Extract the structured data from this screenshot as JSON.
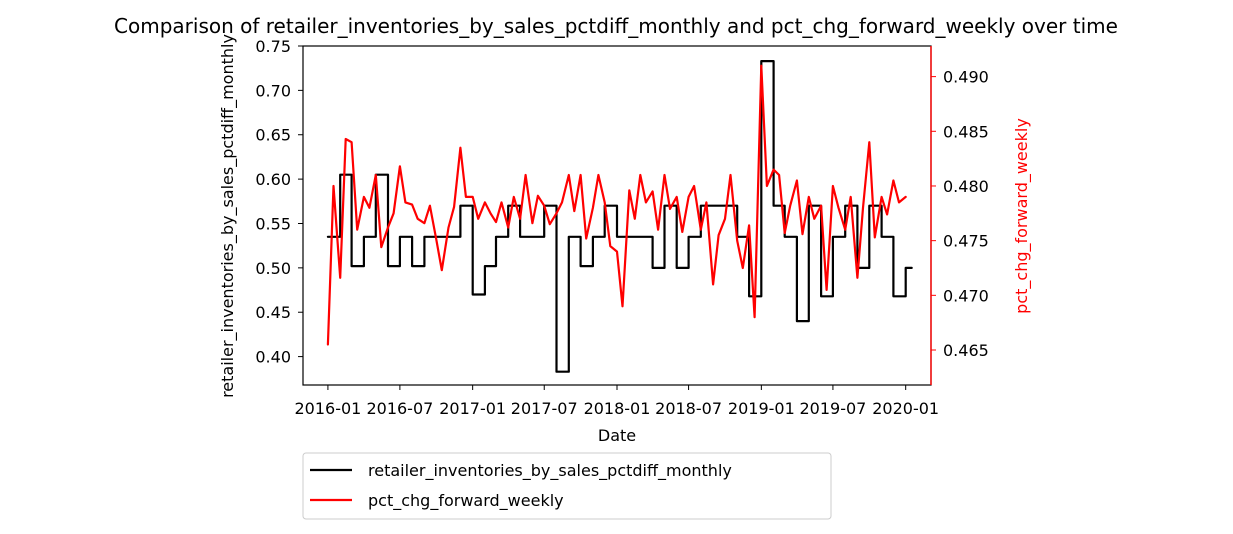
{
  "chart_data": {
    "type": "line",
    "title": "Comparison of retailer_inventories_by_sales_pctdiff_monthly and pct_chg_forward_weekly over time",
    "xlabel": "Date",
    "ylabel_left": "retailer_inventories_by_sales_pctdiff_monthly",
    "ylabel_right": "pct_chg_forward_weekly",
    "x_range": [
      "2015-10-30",
      "2020-03-05"
    ],
    "ylim_left": [
      0.368,
      0.75
    ],
    "ylim_right": [
      0.4618,
      0.4928
    ],
    "x_ticks": [
      "2016-01-01",
      "2016-07-01",
      "2017-01-01",
      "2017-07-01",
      "2018-01-01",
      "2018-07-01",
      "2019-01-01",
      "2019-07-01",
      "2020-01-01"
    ],
    "x_tick_labels": [
      "2016-01",
      "2016-07",
      "2017-01",
      "2017-07",
      "2018-01",
      "2018-07",
      "2019-01",
      "2019-07",
      "2020-01"
    ],
    "y_ticks_left": [
      0.4,
      0.45,
      0.5,
      0.55,
      0.6,
      0.65,
      0.7,
      0.75
    ],
    "y_tick_labels_left": [
      "0.40",
      "0.45",
      "0.50",
      "0.55",
      "0.60",
      "0.65",
      "0.70",
      "0.75"
    ],
    "y_ticks_right": [
      0.465,
      0.47,
      0.475,
      0.48,
      0.485,
      0.49
    ],
    "y_tick_labels_right": [
      "0.465",
      "0.470",
      "0.475",
      "0.480",
      "0.485",
      "0.490"
    ],
    "grid": false,
    "legend_position": "below plot, left",
    "series": [
      {
        "name": "retailer_inventories_by_sales_pctdiff_monthly",
        "color": "#000000",
        "axis": "left",
        "step": true,
        "x": [
          "2016-01-01",
          "2016-02-01",
          "2016-03-01",
          "2016-04-01",
          "2016-05-01",
          "2016-06-01",
          "2016-07-01",
          "2016-08-01",
          "2016-09-01",
          "2016-10-01",
          "2016-11-01",
          "2016-12-01",
          "2017-01-01",
          "2017-02-01",
          "2017-03-01",
          "2017-04-01",
          "2017-05-01",
          "2017-06-01",
          "2017-07-01",
          "2017-08-01",
          "2017-09-01",
          "2017-10-01",
          "2017-11-01",
          "2017-12-01",
          "2018-01-01",
          "2018-02-01",
          "2018-03-01",
          "2018-04-01",
          "2018-05-01",
          "2018-06-01",
          "2018-07-01",
          "2018-08-01",
          "2018-09-01",
          "2018-10-01",
          "2018-11-01",
          "2018-12-01",
          "2019-01-01",
          "2019-02-01",
          "2019-03-01",
          "2019-04-01",
          "2019-05-01",
          "2019-06-01",
          "2019-07-01",
          "2019-08-01",
          "2019-09-01",
          "2019-10-01",
          "2019-11-01",
          "2019-12-01",
          "2020-01-01"
        ],
        "values": [
          0.535,
          0.605,
          0.502,
          0.535,
          0.605,
          0.502,
          0.535,
          0.502,
          0.535,
          0.535,
          0.535,
          0.57,
          0.47,
          0.502,
          0.535,
          0.57,
          0.535,
          0.535,
          0.57,
          0.383,
          0.535,
          0.502,
          0.535,
          0.57,
          0.535,
          0.535,
          0.535,
          0.5,
          0.57,
          0.5,
          0.535,
          0.57,
          0.57,
          0.57,
          0.535,
          0.468,
          0.733,
          0.57,
          0.535,
          0.44,
          0.57,
          0.468,
          0.535,
          0.57,
          0.5,
          0.57,
          0.535,
          0.468,
          0.5
        ]
      },
      {
        "name": "pct_chg_forward_weekly",
        "color": "#ff0000",
        "axis": "right",
        "step": false,
        "x": [
          "2016-01-01",
          "2016-01-15",
          "2016-02-01",
          "2016-02-15",
          "2016-03-01",
          "2016-03-15",
          "2016-04-01",
          "2016-04-15",
          "2016-05-01",
          "2016-05-15",
          "2016-06-01",
          "2016-06-15",
          "2016-07-01",
          "2016-07-15",
          "2016-08-01",
          "2016-08-15",
          "2016-09-01",
          "2016-09-15",
          "2016-10-01",
          "2016-10-15",
          "2016-11-01",
          "2016-11-15",
          "2016-12-01",
          "2016-12-15",
          "2017-01-01",
          "2017-01-15",
          "2017-02-01",
          "2017-02-15",
          "2017-03-01",
          "2017-03-15",
          "2017-04-01",
          "2017-04-15",
          "2017-05-01",
          "2017-05-15",
          "2017-06-01",
          "2017-06-15",
          "2017-07-01",
          "2017-07-15",
          "2017-08-01",
          "2017-08-15",
          "2017-09-01",
          "2017-09-15",
          "2017-10-01",
          "2017-10-15",
          "2017-11-01",
          "2017-11-15",
          "2017-12-01",
          "2017-12-15",
          "2018-01-01",
          "2018-01-15",
          "2018-02-01",
          "2018-02-15",
          "2018-03-01",
          "2018-03-15",
          "2018-04-01",
          "2018-04-15",
          "2018-05-01",
          "2018-05-15",
          "2018-06-01",
          "2018-06-15",
          "2018-07-01",
          "2018-07-15",
          "2018-08-01",
          "2018-08-15",
          "2018-09-01",
          "2018-09-15",
          "2018-10-01",
          "2018-10-15",
          "2018-11-01",
          "2018-11-15",
          "2018-12-01",
          "2018-12-15",
          "2019-01-01",
          "2019-01-15",
          "2019-02-01",
          "2019-02-15",
          "2019-03-01",
          "2019-03-15",
          "2019-04-01",
          "2019-04-15",
          "2019-05-01",
          "2019-05-15",
          "2019-06-01",
          "2019-06-15",
          "2019-07-01",
          "2019-07-15",
          "2019-08-01",
          "2019-08-15",
          "2019-09-01",
          "2019-09-15",
          "2019-10-01",
          "2019-10-15",
          "2019-11-01",
          "2019-11-15",
          "2019-12-01",
          "2019-12-15",
          "2020-01-01"
        ],
        "values": [
          0.4655,
          0.48,
          0.4716,
          0.4843,
          0.484,
          0.476,
          0.479,
          0.478,
          0.481,
          0.4744,
          0.4762,
          0.4775,
          0.4818,
          0.4785,
          0.4783,
          0.477,
          0.4766,
          0.4782,
          0.4751,
          0.4723,
          0.4762,
          0.4781,
          0.4835,
          0.479,
          0.479,
          0.477,
          0.4785,
          0.4775,
          0.4767,
          0.4785,
          0.4762,
          0.479,
          0.477,
          0.481,
          0.4766,
          0.4791,
          0.4782,
          0.4765,
          0.4775,
          0.4785,
          0.481,
          0.4777,
          0.481,
          0.4752,
          0.478,
          0.481,
          0.4785,
          0.4745,
          0.474,
          0.469,
          0.4796,
          0.477,
          0.481,
          0.4785,
          0.4795,
          0.476,
          0.481,
          0.4779,
          0.479,
          0.4758,
          0.479,
          0.48,
          0.476,
          0.4785,
          0.471,
          0.4755,
          0.477,
          0.481,
          0.475,
          0.4725,
          0.4764,
          0.468,
          0.491,
          0.48,
          0.4815,
          0.481,
          0.4757,
          0.4782,
          0.4805,
          0.4756,
          0.479,
          0.477,
          0.4782,
          0.4705,
          0.48,
          0.478,
          0.476,
          0.479,
          0.4716,
          0.478,
          0.484,
          0.4753,
          0.479,
          0.4774,
          0.4805,
          0.4785,
          0.479
        ]
      }
    ]
  }
}
